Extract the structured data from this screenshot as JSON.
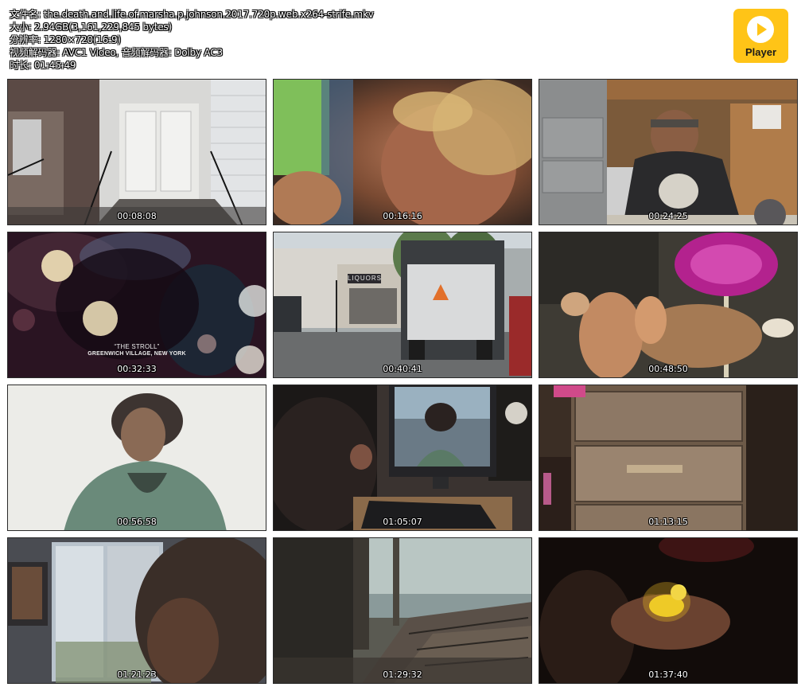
{
  "info": {
    "filename": "文件名: the.death.and.life.of.marsha.p.johnson.2017.720p.web.x264-strife.mkv",
    "size": "大小: 2.94GB(3,161,229,845 bytes)",
    "resolution": "分辨率: 1280×720(16:9)",
    "codecs": "视频解码器: AVC1 Video, 音频解码器: Dolby AC3",
    "duration": "时长: 01:45:49"
  },
  "logo": {
    "brand": "Player",
    "icon": "play-icon",
    "color": "#ffc417"
  },
  "thumbnails": [
    {
      "timestamp": "00:08:08"
    },
    {
      "timestamp": "00:16:16"
    },
    {
      "timestamp": "00:24:25"
    },
    {
      "timestamp": "00:32:33",
      "caption_title": "“THE STROLL”",
      "caption_sub": "GREENWICH VILLAGE, NEW YORK"
    },
    {
      "timestamp": "00:40:41",
      "sign": "LIQUORS"
    },
    {
      "timestamp": "00:48:50"
    },
    {
      "timestamp": "00:56:58"
    },
    {
      "timestamp": "01:05:07"
    },
    {
      "timestamp": "01:13:15"
    },
    {
      "timestamp": "01:21:23"
    },
    {
      "timestamp": "01:29:32"
    },
    {
      "timestamp": "01:37:40"
    }
  ]
}
